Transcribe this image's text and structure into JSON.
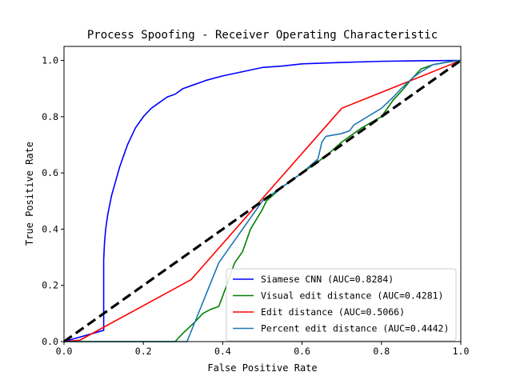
{
  "chart_data": {
    "type": "line",
    "title": "Process Spoofing - Receiver Operating Characteristic",
    "xlabel": "False Positive Rate",
    "ylabel": "True Positive Rate",
    "xlim": [
      0,
      1
    ],
    "ylim": [
      0,
      1.05
    ],
    "xticks": [
      "0.0",
      "0.2",
      "0.4",
      "0.6",
      "0.8",
      "1.0"
    ],
    "yticks": [
      "0.0",
      "0.2",
      "0.4",
      "0.6",
      "0.8",
      "1.0"
    ],
    "grid": false,
    "legend_position": "lower-right",
    "series": [
      {
        "name": "Siamese CNN (AUC=0.8284)",
        "color": "#0000ff",
        "x": [
          0,
          0.1,
          0.1,
          0.102,
          0.105,
          0.11,
          0.12,
          0.13,
          0.14,
          0.15,
          0.16,
          0.17,
          0.18,
          0.2,
          0.22,
          0.24,
          0.26,
          0.28,
          0.3,
          0.33,
          0.36,
          0.4,
          0.45,
          0.5,
          0.55,
          0.6,
          0.7,
          0.8,
          0.9,
          1.0
        ],
        "y": [
          0,
          0.04,
          0.29,
          0.35,
          0.4,
          0.45,
          0.52,
          0.57,
          0.62,
          0.66,
          0.7,
          0.73,
          0.76,
          0.8,
          0.83,
          0.85,
          0.87,
          0.88,
          0.9,
          0.915,
          0.93,
          0.945,
          0.96,
          0.975,
          0.98,
          0.988,
          0.993,
          0.997,
          0.999,
          1.0
        ]
      },
      {
        "name": "Visual edit distance (AUC=0.4281)",
        "color": "#008000",
        "x": [
          0,
          0.28,
          0.3,
          0.33,
          0.35,
          0.37,
          0.39,
          0.41,
          0.43,
          0.44,
          0.45,
          0.47,
          0.5,
          0.51,
          0.55,
          0.6,
          0.64,
          0.66,
          0.7,
          0.75,
          0.8,
          0.83,
          0.85,
          0.88,
          0.9,
          0.93,
          0.97,
          1.0
        ],
        "y": [
          0,
          0,
          0.03,
          0.07,
          0.1,
          0.115,
          0.125,
          0.2,
          0.28,
          0.3,
          0.32,
          0.4,
          0.47,
          0.5,
          0.55,
          0.6,
          0.64,
          0.66,
          0.71,
          0.76,
          0.8,
          0.86,
          0.89,
          0.94,
          0.97,
          0.985,
          0.995,
          1.0
        ]
      },
      {
        "name": "Edit distance (AUC=0.5066)",
        "color": "#ff0000",
        "x": [
          0,
          0.04,
          0.32,
          0.7,
          1.0
        ],
        "y": [
          0,
          0.005,
          0.22,
          0.83,
          1.0
        ]
      },
      {
        "name": "Percent edit distance (AUC=0.4442)",
        "color": "#1f77b4",
        "x": [
          0,
          0.31,
          0.39,
          0.5,
          0.55,
          0.6,
          0.64,
          0.65,
          0.66,
          0.7,
          0.72,
          0.73,
          0.8,
          0.83,
          0.85,
          0.88,
          0.9,
          0.93,
          0.97,
          1.0
        ],
        "y": [
          0,
          0,
          0.28,
          0.5,
          0.55,
          0.6,
          0.65,
          0.71,
          0.73,
          0.74,
          0.75,
          0.77,
          0.83,
          0.87,
          0.9,
          0.94,
          0.96,
          0.985,
          0.995,
          1.0
        ]
      },
      {
        "name": "",
        "color": "#000000",
        "style": "dashed",
        "x": [
          0,
          1
        ],
        "y": [
          0,
          1
        ]
      }
    ]
  }
}
